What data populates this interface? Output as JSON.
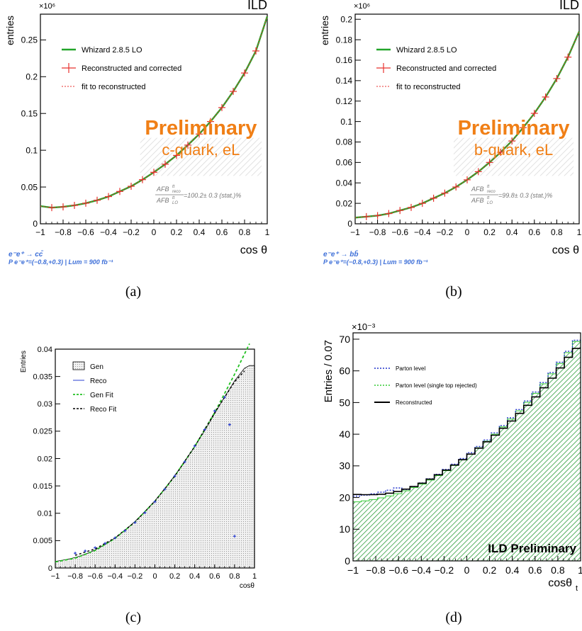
{
  "captions": [
    "(a)",
    "(b)",
    "(c)",
    "(d)"
  ],
  "colors": {
    "gen_line": "#22a52a",
    "reco": "#e8322f",
    "fit": "#e8322f",
    "prelim": "#f07f16",
    "process": "#3d6fd8",
    "afb": "#777777",
    "parton": "#2233cc",
    "single_top": "#33cc33",
    "reco_hist": "#000000"
  },
  "chart_data": [
    {
      "id": "a",
      "type": "line",
      "corner_label": "ILD",
      "exponent": "×10⁶",
      "xlabel": "cos θ",
      "ylabel": "entries",
      "xlim": [
        -1,
        1
      ],
      "ylim": [
        0,
        0.285
      ],
      "xticks": [
        "−1",
        "−0.8",
        "−0.6",
        "−0.4",
        "−0.2",
        "0",
        "0.2",
        "0.4",
        "0.6",
        "0.8",
        "1"
      ],
      "yticks": [
        "0",
        "0.05",
        "0.1",
        "0.15",
        "0.2",
        "0.25"
      ],
      "ytick_values": [
        0,
        0.05,
        0.1,
        0.15,
        0.2,
        0.25
      ],
      "legend": [
        "Whizard 2.8.5 LO",
        "Reconstructed and corrected",
        "fit to reconstructed"
      ],
      "preliminary": "Preliminary",
      "sample": "c-quark, eL",
      "afb_num": "AFB",
      "afb_num_sup": "tt",
      "afb_num_sub": "reco",
      "afb_den": "AFB",
      "afb_den_sup": "tt",
      "afb_den_sub": "LO",
      "afb_value": "=100.2± 0.3 (stat.)%",
      "process": "e⁻e⁺ → cc̄",
      "polarisation": "P e⁻e⁺=(−0.8,+0.3) | Lum = 900 fb⁻¹",
      "series": [
        {
          "x": [
            -1.0,
            -0.9,
            -0.8,
            -0.7,
            -0.6,
            -0.5,
            -0.4,
            -0.3,
            -0.2,
            -0.1,
            0.0,
            0.1,
            0.2,
            0.3,
            0.4,
            0.5,
            0.6,
            0.7,
            0.8,
            0.9,
            1.0
          ],
          "y": [
            0.024,
            0.022,
            0.023,
            0.025,
            0.028,
            0.032,
            0.037,
            0.044,
            0.051,
            0.06,
            0.07,
            0.081,
            0.093,
            0.107,
            0.122,
            0.139,
            0.158,
            0.18,
            0.205,
            0.235,
            0.282
          ]
        }
      ]
    },
    {
      "id": "b",
      "type": "line",
      "corner_label": "ILD",
      "exponent": "×10⁶",
      "xlabel": "cos θ",
      "ylabel": "entries",
      "xlim": [
        -1,
        1
      ],
      "ylim": [
        0,
        0.205
      ],
      "xticks": [
        "−1",
        "−0.8",
        "−0.6",
        "−0.4",
        "−0.2",
        "0",
        "0.2",
        "0.4",
        "0.6",
        "0.8",
        "1"
      ],
      "yticks": [
        "0",
        "0.02",
        "0.04",
        "0.06",
        "0.08",
        "0.1",
        "0.12",
        "0.14",
        "0.16",
        "0.18",
        "0.2"
      ],
      "ytick_values": [
        0,
        0.02,
        0.04,
        0.06,
        0.08,
        0.1,
        0.12,
        0.14,
        0.16,
        0.18,
        0.2
      ],
      "legend": [
        "Whizard 2.8.5 LO",
        "Reconstructed and corrected",
        "fit to reconstructed"
      ],
      "preliminary": "Preliminary",
      "sample": "b-quark, eL",
      "afb_num": "AFB",
      "afb_num_sup": "tt",
      "afb_num_sub": "reco",
      "afb_den": "AFB",
      "afb_den_sup": "tt",
      "afb_den_sub": "LO",
      "afb_value": "=99.8± 0.3 (stat.)%",
      "process": "e⁻e⁺ → bb̄",
      "polarisation": "P e⁻e⁺=(−0.8,+0.3) | Lum = 900 fb⁻¹",
      "series": [
        {
          "x": [
            -1.0,
            -0.9,
            -0.8,
            -0.7,
            -0.6,
            -0.5,
            -0.4,
            -0.3,
            -0.2,
            -0.1,
            0.0,
            0.1,
            0.2,
            0.3,
            0.4,
            0.5,
            0.6,
            0.7,
            0.8,
            0.9,
            1.0
          ],
          "y": [
            0.006,
            0.007,
            0.008,
            0.01,
            0.013,
            0.016,
            0.02,
            0.025,
            0.03,
            0.036,
            0.043,
            0.051,
            0.06,
            0.07,
            0.081,
            0.094,
            0.108,
            0.124,
            0.142,
            0.163,
            0.188
          ]
        }
      ]
    },
    {
      "id": "c",
      "type": "line",
      "xlabel": "cosθ",
      "ylabel": "Entries",
      "xlim": [
        -1,
        1
      ],
      "ylim": [
        0,
        0.04
      ],
      "xticks": [
        "−1",
        "−0.8",
        "−0.6",
        "−0.4",
        "−0.2",
        "0",
        "0.2",
        "0.4",
        "0.6",
        "0.8",
        "1"
      ],
      "yticks": [
        "0",
        "0.005",
        "0.01",
        "0.015",
        "0.02",
        "0.025",
        "0.03",
        "0.035",
        "0.04"
      ],
      "ytick_values": [
        0,
        0.005,
        0.01,
        0.015,
        0.02,
        0.025,
        0.03,
        0.035,
        0.04
      ],
      "legend": [
        "Gen",
        "Reco",
        "Gen Fit",
        "Reco Fit"
      ],
      "series": [
        {
          "name": "Gen",
          "x": [
            -1.0,
            -0.9,
            -0.8,
            -0.7,
            -0.6,
            -0.5,
            -0.4,
            -0.3,
            -0.2,
            -0.1,
            0.0,
            0.1,
            0.2,
            0.3,
            0.4,
            0.5,
            0.6,
            0.7,
            0.8,
            0.9,
            0.95,
            1.0
          ],
          "y": [
            0.0012,
            0.0015,
            0.0019,
            0.0025,
            0.0033,
            0.0043,
            0.0055,
            0.0069,
            0.0085,
            0.0103,
            0.0123,
            0.0145,
            0.0169,
            0.0195,
            0.0222,
            0.0251,
            0.0282,
            0.0313,
            0.0342,
            0.0365,
            0.037,
            0.037
          ]
        },
        {
          "name": "Gen Fit",
          "x": [
            -1.0,
            -0.8,
            -0.6,
            -0.4,
            -0.2,
            0.0,
            0.2,
            0.4,
            0.6,
            0.8,
            0.95
          ],
          "y": [
            0.0011,
            0.0018,
            0.0032,
            0.0054,
            0.0084,
            0.0122,
            0.0168,
            0.0222,
            0.0284,
            0.0354,
            0.041
          ]
        },
        {
          "name": "Reco Fit",
          "x": [
            -0.8,
            -0.6,
            -0.4,
            -0.2,
            0.0,
            0.2,
            0.4,
            0.6,
            0.8,
            0.9
          ],
          "y": [
            0.0023,
            0.0035,
            0.0055,
            0.0084,
            0.0122,
            0.0168,
            0.0222,
            0.0284,
            0.034,
            0.036
          ]
        },
        {
          "name": "Reco",
          "x": [
            -0.8,
            -0.7,
            -0.6,
            -0.5,
            -0.4,
            -0.3,
            -0.2,
            -0.1,
            0.0,
            0.1,
            0.2,
            0.3,
            0.4,
            0.5,
            0.6,
            0.7,
            0.75,
            0.8
          ],
          "y": [
            0.0027,
            0.0031,
            0.0037,
            0.0045,
            0.0055,
            0.0068,
            0.0083,
            0.0101,
            0.0121,
            0.0144,
            0.0168,
            0.0194,
            0.0223,
            0.0253,
            0.0287,
            0.0312,
            0.0262,
            0.0058
          ]
        }
      ]
    },
    {
      "id": "d",
      "type": "bar",
      "exponent": "×10⁻³",
      "xlabel": "cosθ",
      "xlabel_sub": "t",
      "ylabel": "Entries / 0.07",
      "xlim": [
        -1,
        1
      ],
      "ylim": [
        0,
        72
      ],
      "xticks": [
        "−1",
        "−0.8",
        "−0.6",
        "−0.4",
        "−0.2",
        "0",
        "0.2",
        "0.4",
        "0.6",
        "0.8",
        "1"
      ],
      "yticks": [
        "0",
        "10",
        "20",
        "30",
        "40",
        "50",
        "60",
        "70"
      ],
      "ytick_values": [
        0,
        10,
        20,
        30,
        40,
        50,
        60,
        70
      ],
      "legend": [
        "Parton level",
        "Parton level (single top rejected)",
        "Reconstructed"
      ],
      "watermark": "ILD Preliminary",
      "series": [
        {
          "name": "Reconstructed",
          "x": [
            -1.0,
            -0.9,
            -0.8,
            -0.7,
            -0.6,
            -0.5,
            -0.4,
            -0.3,
            -0.2,
            -0.1,
            0.0,
            0.1,
            0.2,
            0.3,
            0.4,
            0.5,
            0.6,
            0.7,
            0.8,
            0.9,
            1.0
          ],
          "y": [
            21,
            20.9,
            20.9,
            21.2,
            22.0,
            23.0,
            24.4,
            26.2,
            28.2,
            30.4,
            32.8,
            35.4,
            38.2,
            41.2,
            44.4,
            47.8,
            51.5,
            55.5,
            59.9,
            64.6,
            68.5
          ]
        },
        {
          "name": "Parton level (single top rejected)",
          "x": [
            -1.0,
            -0.9,
            -0.8,
            -0.7,
            -0.6,
            -0.5,
            -0.4,
            -0.3,
            -0.2,
            -0.1,
            0.0,
            0.1,
            0.2,
            0.3,
            0.4,
            0.5,
            0.6,
            0.7,
            0.8,
            0.9,
            1.0
          ],
          "y": [
            18.5,
            18.9,
            19.5,
            20.3,
            21.3,
            22.6,
            24.1,
            25.9,
            28.0,
            30.3,
            32.8,
            35.5,
            38.4,
            41.6,
            45.0,
            48.7,
            52.6,
            56.8,
            61.3,
            66.1,
            71.0
          ]
        }
      ]
    }
  ]
}
